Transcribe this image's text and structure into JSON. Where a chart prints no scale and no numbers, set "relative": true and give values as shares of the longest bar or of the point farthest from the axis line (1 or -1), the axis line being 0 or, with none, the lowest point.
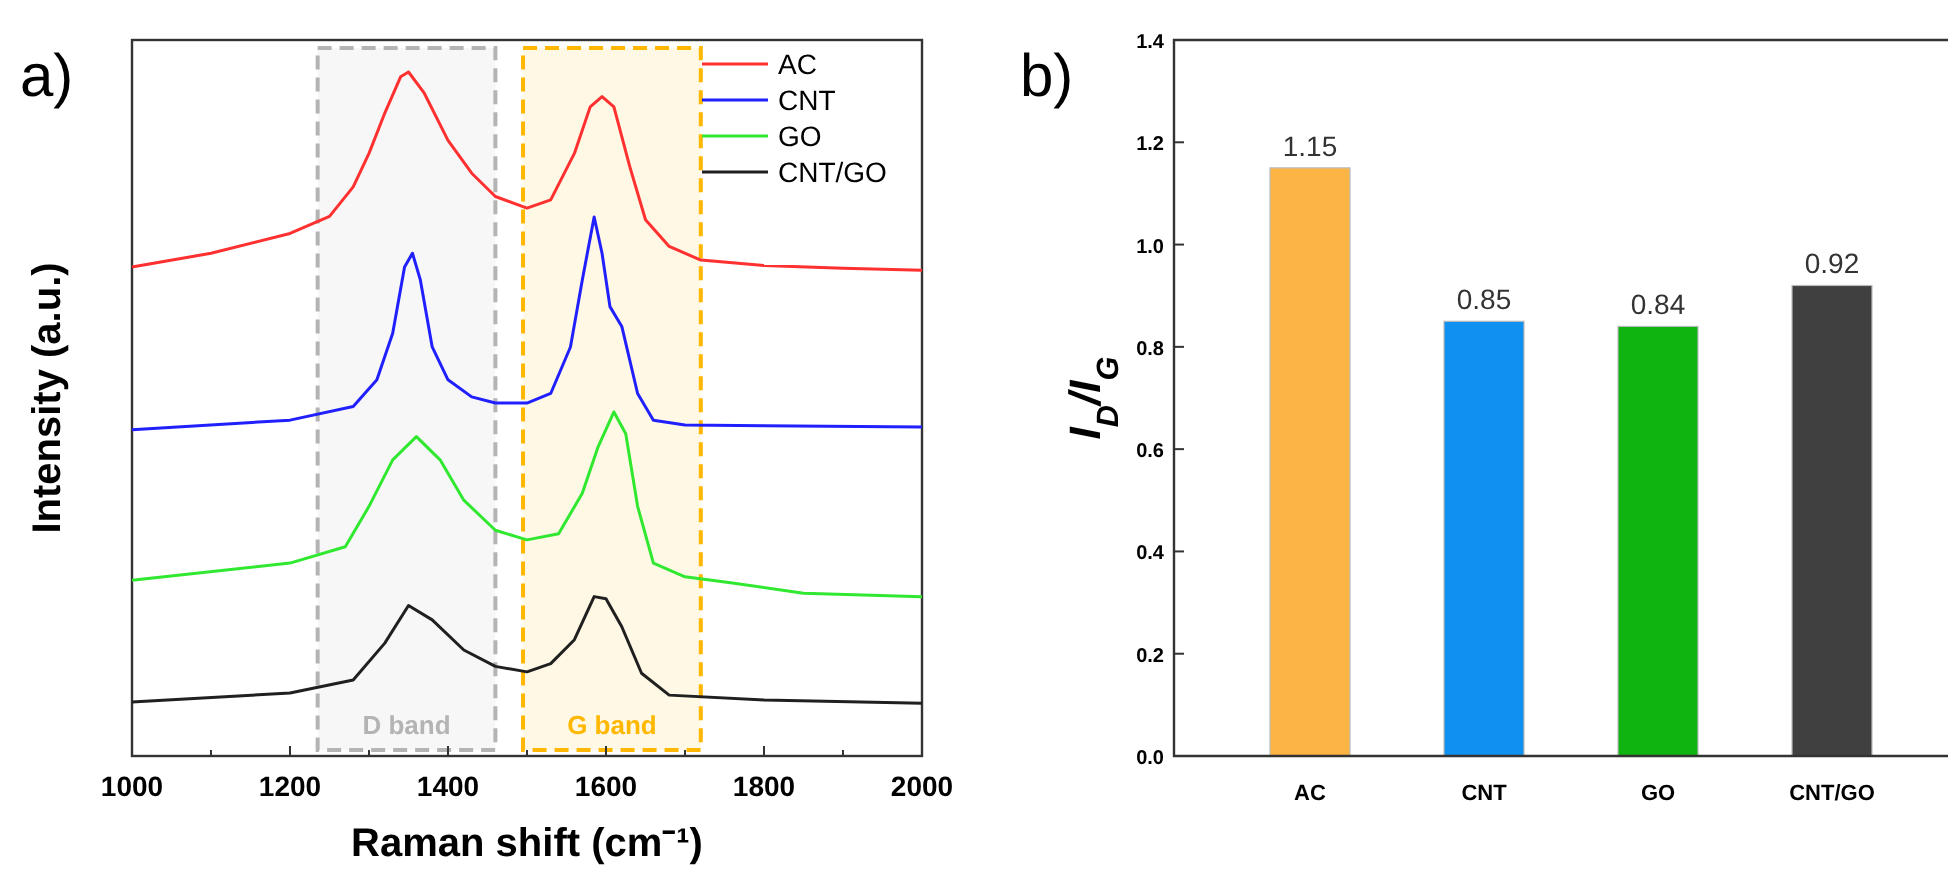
{
  "chart_data": [
    {
      "type": "line",
      "title": "a)",
      "xlabel": "Raman shift (cm⁻¹)",
      "ylabel": "Intensity (a.u.)",
      "relative": true,
      "tick_labels": "x",
      "legend": "top right",
      "line_style": "solid",
      "marker": "none",
      "xlim": [
        1000,
        2000
      ],
      "xticks": [
        1000,
        {
          "value": 1100,
          "label": null
        },
        1200,
        {
          "value": 1300,
          "label": null
        },
        1400,
        {
          "value": 1500,
          "label": null
        },
        1600,
        {
          "value": 1700,
          "label": null
        },
        1800,
        {
          "value": 1900,
          "label": null
        },
        2000
      ],
      "bands": [
        {
          "axis": "x",
          "from": 1235,
          "to": 1460,
          "label": "D band",
          "color": "#b4b4b4"
        },
        {
          "axis": "x",
          "from": 1495,
          "to": 1720,
          "label": "G band",
          "color": "#ffb700"
        }
      ],
      "series": [
        {
          "name": "AC",
          "color": "#ff3030",
          "x": [
            1000,
            1100,
            1200,
            1250,
            1280,
            1300,
            1320,
            1340,
            1350,
            1370,
            1400,
            1430,
            1460,
            1500,
            1530,
            1560,
            1580,
            1595,
            1610,
            1630,
            1650,
            1680,
            1720,
            1800,
            1900,
            2000
          ],
          "values": [
            0.715,
            0.735,
            0.764,
            0.789,
            0.832,
            0.881,
            0.94,
            0.993,
            1,
            0.969,
            0.9,
            0.852,
            0.818,
            0.801,
            0.813,
            0.881,
            0.949,
            0.964,
            0.949,
            0.862,
            0.784,
            0.745,
            0.725,
            0.717,
            0.713,
            0.71
          ]
        },
        {
          "name": "CNT",
          "color": "#2020ff",
          "x": [
            1000,
            1200,
            1280,
            1310,
            1330,
            1345,
            1355,
            1365,
            1380,
            1400,
            1430,
            1460,
            1500,
            1530,
            1555,
            1570,
            1585,
            1595,
            1605,
            1620,
            1640,
            1660,
            1700,
            1800,
            2000
          ],
          "values": [
            0.477,
            0.491,
            0.511,
            0.55,
            0.618,
            0.715,
            0.735,
            0.696,
            0.598,
            0.55,
            0.525,
            0.516,
            0.516,
            0.53,
            0.598,
            0.696,
            0.788,
            0.735,
            0.657,
            0.628,
            0.53,
            0.491,
            0.484,
            0.483,
            0.481
          ]
        },
        {
          "name": "GO",
          "color": "#30e830",
          "x": [
            1000,
            1200,
            1270,
            1300,
            1330,
            1360,
            1390,
            1420,
            1460,
            1500,
            1540,
            1570,
            1590,
            1610,
            1625,
            1640,
            1660,
            1700,
            1760,
            1850,
            2000
          ],
          "values": [
            0.257,
            0.282,
            0.306,
            0.365,
            0.433,
            0.467,
            0.433,
            0.374,
            0.33,
            0.316,
            0.325,
            0.384,
            0.452,
            0.503,
            0.471,
            0.365,
            0.282,
            0.262,
            0.253,
            0.238,
            0.233
          ]
        },
        {
          "name": "CNT/GO",
          "color": "#202020",
          "x": [
            1000,
            1200,
            1280,
            1320,
            1350,
            1380,
            1420,
            1460,
            1500,
            1530,
            1560,
            1585,
            1600,
            1620,
            1645,
            1680,
            1800,
            2000
          ],
          "values": [
            0.079,
            0.092,
            0.111,
            0.165,
            0.22,
            0.199,
            0.155,
            0.131,
            0.123,
            0.135,
            0.17,
            0.233,
            0.23,
            0.189,
            0.121,
            0.089,
            0.082,
            0.077
          ]
        }
      ]
    },
    {
      "type": "bar",
      "title": "b)",
      "ylabel": "I$_{D}$/I$_{G}$",
      "categories": [
        "AC",
        "CNT",
        "GO",
        "CNT/GO"
      ],
      "values": [
        1.15,
        0.85,
        0.84,
        0.92
      ],
      "colors": [
        "#fcb444",
        "#1090f0",
        "#10b410",
        "#404040"
      ],
      "data_labels": true,
      "ylim": [
        0,
        1.4
      ],
      "yticks": [
        {
          "value": 0,
          "label": "0.0"
        },
        0.2,
        0.4,
        0.6,
        0.8,
        {
          "value": 1,
          "label": "1.0"
        },
        1.2,
        1.4
      ]
    }
  ]
}
